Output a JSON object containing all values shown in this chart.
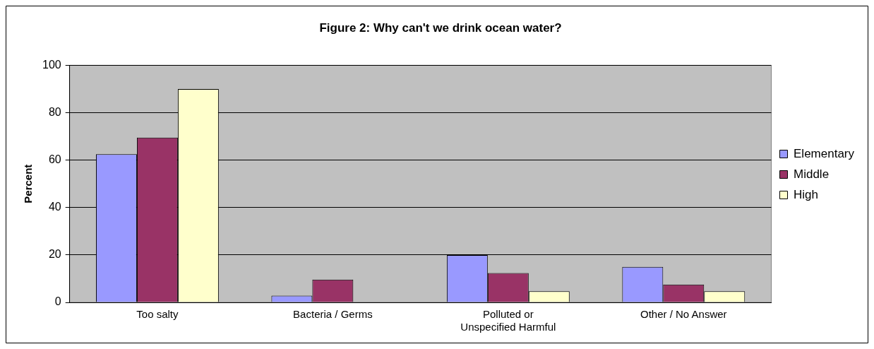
{
  "chart_data": {
    "type": "bar",
    "title": "Figure 2: Why can't we drink ocean water?",
    "ylabel": "Percent",
    "categories": [
      "Too salty",
      "Bacteria / Germs",
      "Polluted or\nUnspecified Harmful",
      "Other / No Answer"
    ],
    "series": [
      {
        "name": "Elementary",
        "color": "#9999ff",
        "values": [
          62.5,
          2.8,
          20,
          15
        ]
      },
      {
        "name": "Middle",
        "color": "#993366",
        "values": [
          69.5,
          9.6,
          12.4,
          7.5
        ]
      },
      {
        "name": "High",
        "color": "#ffffcc",
        "values": [
          90,
          0,
          4.7,
          4.7
        ]
      }
    ],
    "ylim": [
      0,
      100
    ],
    "yticks": [
      0,
      20,
      40,
      60,
      80,
      100
    ],
    "grid": "y",
    "legend": "right"
  }
}
